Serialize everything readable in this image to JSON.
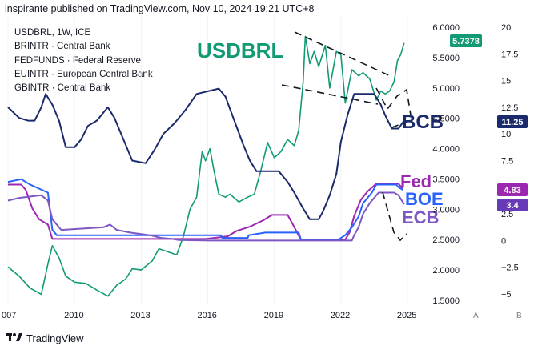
{
  "header": {
    "text": "inspirante published on TradingView.com, Nov 10, 2024 19:21 UTC+8"
  },
  "legend": [
    "USDBRL, 1W, ICE",
    "BRINTR · Central Bank",
    "FEDFUNDS · Federal Reserve",
    "EUINTR · European Central Bank",
    "GBINTR · Central Bank"
  ],
  "footer": {
    "brand": "TradingView",
    "logo_icon": "tradingview-logo-icon"
  },
  "axis_buttons": {
    "left": "A",
    "right": "B"
  },
  "annotations": {
    "usdbrl": "USDBRL",
    "bcb": "BCB",
    "fed": "Fed",
    "boe": "BOE",
    "ecb": "ECB"
  },
  "chart_data": {
    "type": "line",
    "x_ticks": [
      "007",
      "2010",
      "2013",
      "2016",
      "2019",
      "2022",
      "2025"
    ],
    "y_left": {
      "ticks": [
        "6.0000",
        "5.5000",
        "5.0000",
        "4.5000",
        "4.0000",
        "3.5000",
        "3.0000",
        "2.5000",
        "2.0000",
        "1.5000"
      ],
      "range": [
        1.5,
        6.0
      ]
    },
    "y_right": {
      "ticks": [
        "20",
        "17.5",
        "15",
        "12.5",
        "10",
        "7.5",
        "5",
        "2.5",
        "0",
        "−2.5",
        "−5"
      ],
      "range": [
        -5,
        20
      ]
    },
    "price_labels": [
      {
        "value": "5.7378",
        "color": "#129a74"
      },
      {
        "value": "11.25",
        "color": "#1a2a6c"
      },
      {
        "value": "4.83",
        "color": "#9c27b0"
      },
      {
        "value": "3.4",
        "color": "#673ab7"
      }
    ],
    "colors": {
      "usdbrl": "#129a74",
      "bcb": "#1a2a6c",
      "fed": "#9c27b0",
      "boe": "#2962ff",
      "ecb": "#7e57c2"
    },
    "series": [
      {
        "name": "USDBRL",
        "axis": "left",
        "color": "#129a74",
        "points": [
          [
            2007.0,
            2.05
          ],
          [
            2007.5,
            1.9
          ],
          [
            2008.0,
            1.7
          ],
          [
            2008.5,
            1.6
          ],
          [
            2008.8,
            2.1
          ],
          [
            2009.0,
            2.4
          ],
          [
            2009.3,
            2.2
          ],
          [
            2009.6,
            1.9
          ],
          [
            2010.0,
            1.8
          ],
          [
            2010.5,
            1.78
          ],
          [
            2011.0,
            1.67
          ],
          [
            2011.5,
            1.57
          ],
          [
            2011.9,
            1.75
          ],
          [
            2012.3,
            1.85
          ],
          [
            2012.6,
            2.02
          ],
          [
            2013.0,
            2.0
          ],
          [
            2013.5,
            2.15
          ],
          [
            2013.8,
            2.35
          ],
          [
            2014.2,
            2.3
          ],
          [
            2014.6,
            2.25
          ],
          [
            2014.9,
            2.55
          ],
          [
            2015.2,
            3.0
          ],
          [
            2015.5,
            3.2
          ],
          [
            2015.75,
            3.95
          ],
          [
            2015.9,
            3.8
          ],
          [
            2016.1,
            4.0
          ],
          [
            2016.3,
            3.6
          ],
          [
            2016.5,
            3.25
          ],
          [
            2016.8,
            3.2
          ],
          [
            2017.0,
            3.25
          ],
          [
            2017.4,
            3.12
          ],
          [
            2017.8,
            3.2
          ],
          [
            2018.1,
            3.25
          ],
          [
            2018.4,
            3.65
          ],
          [
            2018.7,
            4.1
          ],
          [
            2019.0,
            3.85
          ],
          [
            2019.3,
            3.95
          ],
          [
            2019.6,
            4.15
          ],
          [
            2019.9,
            4.05
          ],
          [
            2020.1,
            4.3
          ],
          [
            2020.3,
            5.1
          ],
          [
            2020.4,
            5.85
          ],
          [
            2020.6,
            5.4
          ],
          [
            2020.8,
            5.6
          ],
          [
            2021.0,
            5.35
          ],
          [
            2021.3,
            5.7
          ],
          [
            2021.5,
            5.0
          ],
          [
            2021.8,
            5.6
          ],
          [
            2022.0,
            5.55
          ],
          [
            2022.2,
            4.75
          ],
          [
            2022.5,
            5.3
          ],
          [
            2022.8,
            5.2
          ],
          [
            2023.0,
            5.25
          ],
          [
            2023.3,
            5.15
          ],
          [
            2023.6,
            4.8
          ],
          [
            2023.8,
            4.95
          ],
          [
            2024.0,
            4.9
          ],
          [
            2024.2,
            4.95
          ],
          [
            2024.4,
            5.1
          ],
          [
            2024.55,
            5.45
          ],
          [
            2024.7,
            5.55
          ],
          [
            2024.85,
            5.74
          ]
        ]
      },
      {
        "name": "BCB",
        "axis": "right",
        "color": "#1a2a6c",
        "points": [
          [
            2007.0,
            12.5
          ],
          [
            2007.5,
            11.5
          ],
          [
            2007.9,
            11.25
          ],
          [
            2008.2,
            11.25
          ],
          [
            2008.5,
            12.5
          ],
          [
            2008.7,
            13.75
          ],
          [
            2009.0,
            12.75
          ],
          [
            2009.3,
            11.25
          ],
          [
            2009.6,
            8.75
          ],
          [
            2010.0,
            8.75
          ],
          [
            2010.3,
            9.5
          ],
          [
            2010.6,
            10.75
          ],
          [
            2011.0,
            11.25
          ],
          [
            2011.5,
            12.5
          ],
          [
            2011.8,
            11.5
          ],
          [
            2012.2,
            9.5
          ],
          [
            2012.6,
            7.5
          ],
          [
            2013.2,
            7.25
          ],
          [
            2013.6,
            8.5
          ],
          [
            2014.0,
            10.0
          ],
          [
            2014.5,
            11.0
          ],
          [
            2015.0,
            12.25
          ],
          [
            2015.5,
            13.75
          ],
          [
            2016.5,
            14.25
          ],
          [
            2016.8,
            13.5
          ],
          [
            2017.2,
            11.25
          ],
          [
            2017.6,
            9.0
          ],
          [
            2017.9,
            7.5
          ],
          [
            2018.2,
            6.5
          ],
          [
            2019.2,
            6.5
          ],
          [
            2019.6,
            5.5
          ],
          [
            2019.9,
            4.5
          ],
          [
            2020.3,
            3.0
          ],
          [
            2020.6,
            2.0
          ],
          [
            2021.0,
            2.0
          ],
          [
            2021.2,
            2.75
          ],
          [
            2021.5,
            4.25
          ],
          [
            2021.8,
            6.25
          ],
          [
            2022.0,
            9.25
          ],
          [
            2022.3,
            11.75
          ],
          [
            2022.6,
            13.75
          ],
          [
            2023.5,
            13.75
          ],
          [
            2023.8,
            12.75
          ],
          [
            2024.0,
            11.75
          ],
          [
            2024.3,
            10.5
          ],
          [
            2024.4,
            10.5
          ],
          [
            2024.6,
            10.5
          ],
          [
            2024.85,
            11.25
          ]
        ]
      },
      {
        "name": "Fed",
        "axis": "right",
        "color": "#9c27b0",
        "points": [
          [
            2007.0,
            5.25
          ],
          [
            2007.6,
            5.25
          ],
          [
            2007.8,
            4.75
          ],
          [
            2008.1,
            3.0
          ],
          [
            2008.4,
            2.0
          ],
          [
            2008.8,
            1.5
          ],
          [
            2009.0,
            0.15
          ],
          [
            2015.9,
            0.15
          ],
          [
            2016.9,
            0.4
          ],
          [
            2017.3,
            0.9
          ],
          [
            2017.9,
            1.3
          ],
          [
            2018.5,
            1.9
          ],
          [
            2018.9,
            2.4
          ],
          [
            2019.6,
            2.4
          ],
          [
            2019.8,
            1.65
          ],
          [
            2020.2,
            0.08
          ],
          [
            2022.2,
            0.08
          ],
          [
            2022.4,
            0.8
          ],
          [
            2022.6,
            2.3
          ],
          [
            2022.9,
            3.8
          ],
          [
            2023.2,
            4.6
          ],
          [
            2023.6,
            5.33
          ],
          [
            2024.6,
            5.33
          ],
          [
            2024.8,
            4.83
          ]
        ]
      },
      {
        "name": "BOE",
        "axis": "right",
        "color": "#2962ff",
        "points": [
          [
            2007.0,
            5.5
          ],
          [
            2007.6,
            5.75
          ],
          [
            2008.0,
            5.25
          ],
          [
            2008.8,
            4.5
          ],
          [
            2009.0,
            1.0
          ],
          [
            2009.2,
            0.5
          ],
          [
            2016.6,
            0.5
          ],
          [
            2016.65,
            0.25
          ],
          [
            2017.8,
            0.25
          ],
          [
            2017.85,
            0.5
          ],
          [
            2018.6,
            0.75
          ],
          [
            2020.1,
            0.75
          ],
          [
            2020.2,
            0.1
          ],
          [
            2021.9,
            0.1
          ],
          [
            2022.2,
            0.5
          ],
          [
            2022.5,
            1.25
          ],
          [
            2022.8,
            2.25
          ],
          [
            2023.0,
            3.5
          ],
          [
            2023.4,
            4.5
          ],
          [
            2023.6,
            5.25
          ],
          [
            2024.5,
            5.25
          ],
          [
            2024.6,
            5.0
          ],
          [
            2024.8,
            4.75
          ]
        ]
      },
      {
        "name": "ECB",
        "axis": "right",
        "color": "#7e57c2",
        "points": [
          [
            2007.0,
            3.75
          ],
          [
            2007.5,
            4.0
          ],
          [
            2008.5,
            4.25
          ],
          [
            2008.8,
            3.75
          ],
          [
            2009.0,
            2.0
          ],
          [
            2009.4,
            1.0
          ],
          [
            2011.3,
            1.25
          ],
          [
            2011.6,
            1.5
          ],
          [
            2011.9,
            1.0
          ],
          [
            2012.5,
            0.75
          ],
          [
            2013.4,
            0.5
          ],
          [
            2013.9,
            0.25
          ],
          [
            2014.4,
            0.15
          ],
          [
            2014.7,
            0.05
          ],
          [
            2016.2,
            0.0
          ],
          [
            2022.5,
            0.0
          ],
          [
            2022.6,
            0.5
          ],
          [
            2022.8,
            1.25
          ],
          [
            2023.0,
            2.5
          ],
          [
            2023.3,
            3.5
          ],
          [
            2023.7,
            4.5
          ],
          [
            2024.4,
            4.5
          ],
          [
            2024.6,
            4.25
          ],
          [
            2024.85,
            3.4
          ]
        ]
      }
    ]
  }
}
